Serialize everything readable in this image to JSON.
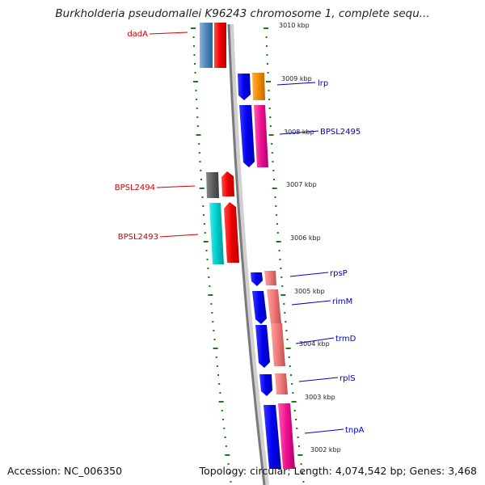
{
  "title": "Burkholderia pseudomallei K96243 chromosome 1, complete sequ...",
  "footer": {
    "accession": "Accession: NC_006350",
    "summary": "Topology: circular; Length: 4,074,542 bp; Genes: 3,468"
  },
  "colors": {
    "backbone": "#8a8a8a",
    "tick": "#1a7a1a",
    "forward_label": "#cc0000",
    "reverse_label": "#0000cc"
  },
  "axis_labels": [
    "3010 kbp",
    "3009 kbp",
    "3008 kbp",
    "3007 kbp",
    "3006 kbp",
    "3005 kbp",
    "3004 kbp",
    "3003 kbp",
    "3002 kbp"
  ],
  "labels_left": [
    "dadA",
    "BPSL2494",
    "BPSL2493"
  ],
  "labels_right": [
    "lrp",
    "BPSL2495",
    "rpsP",
    "rimM",
    "trmD",
    "rplS",
    "tnpA"
  ]
}
